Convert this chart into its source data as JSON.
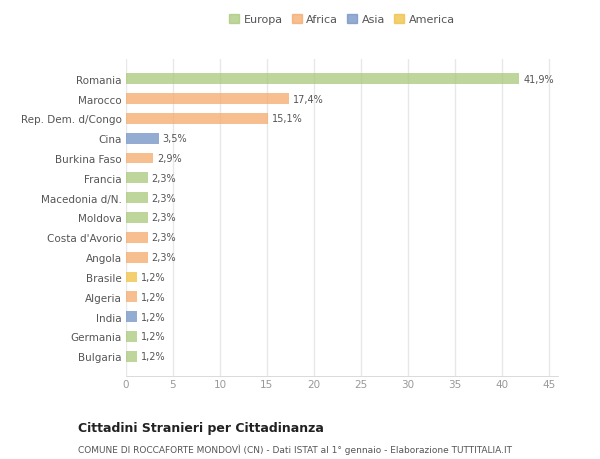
{
  "categories": [
    "Bulgaria",
    "Germania",
    "India",
    "Algeria",
    "Brasile",
    "Angola",
    "Costa d'Avorio",
    "Moldova",
    "Macedonia d/N.",
    "Francia",
    "Burkina Faso",
    "Cina",
    "Rep. Dem. d/Congo",
    "Marocco",
    "Romania"
  ],
  "values": [
    1.2,
    1.2,
    1.2,
    1.2,
    1.2,
    2.3,
    2.3,
    2.3,
    2.3,
    2.3,
    2.9,
    3.5,
    15.1,
    17.4,
    41.9
  ],
  "labels": [
    "1,2%",
    "1,2%",
    "1,2%",
    "1,2%",
    "1,2%",
    "2,3%",
    "2,3%",
    "2,3%",
    "2,3%",
    "2,3%",
    "2,9%",
    "3,5%",
    "15,1%",
    "17,4%",
    "41,9%"
  ],
  "colors": [
    "#a8c87a",
    "#a8c87a",
    "#7191c4",
    "#f5a96b",
    "#f0c040",
    "#f5a96b",
    "#f5a96b",
    "#a8c87a",
    "#a8c87a",
    "#a8c87a",
    "#f5a96b",
    "#7191c4",
    "#f5a96b",
    "#f5a96b",
    "#a8c87a"
  ],
  "legend_labels": [
    "Europa",
    "Africa",
    "Asia",
    "America"
  ],
  "legend_colors": [
    "#a8c87a",
    "#f5a96b",
    "#7191c4",
    "#f0c040"
  ],
  "title": "Cittadini Stranieri per Cittadinanza",
  "subtitle": "COMUNE DI ROCCAFORTE MONDOVÌ (CN) - Dati ISTAT al 1° gennaio - Elaborazione TUTTITALIA.IT",
  "xlim": [
    0,
    46
  ],
  "xticks": [
    0,
    5,
    10,
    15,
    20,
    25,
    30,
    35,
    40,
    45
  ],
  "bg_color": "#ffffff",
  "grid_color": "#e8e8e8"
}
